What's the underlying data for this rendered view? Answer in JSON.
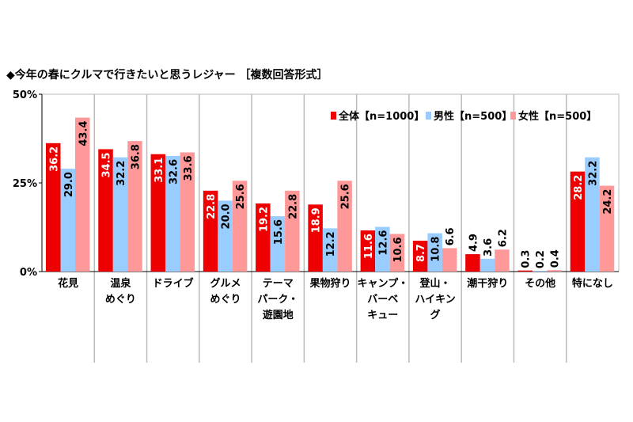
{
  "chart_data": {
    "type": "bar",
    "title": "◆今年の春にクルマで行きたいと思うレジャー ［複数回答形式］",
    "xlabel": "",
    "ylabel": "",
    "ylim": [
      0,
      50
    ],
    "yticks": [
      "0%",
      "25%",
      "50%"
    ],
    "ytick_values": [
      0,
      25,
      50
    ],
    "grid": "vertical separators between categories",
    "legend_position": "top-right",
    "categories": [
      [
        "花見"
      ],
      [
        "温泉",
        "めぐり"
      ],
      [
        "ドライブ"
      ],
      [
        "グルメ",
        "めぐり"
      ],
      [
        "テーマ",
        "パーク・",
        "遊園地"
      ],
      [
        "果物狩り"
      ],
      [
        "キャンプ・",
        "バーベ",
        "キュー"
      ],
      [
        "登山・",
        "ハイキン",
        "グ"
      ],
      [
        "潮干狩り"
      ],
      [
        "その他"
      ],
      [
        "特になし"
      ]
    ],
    "series": [
      {
        "name": "全体【n=1000】",
        "color": "#ee0000",
        "label_color": "#ffffff",
        "values": [
          36.2,
          34.5,
          33.1,
          22.8,
          19.2,
          18.9,
          11.6,
          8.7,
          4.9,
          0.3,
          28.2
        ]
      },
      {
        "name": "男性【n=500】",
        "color": "#99ccff",
        "label_color": "#000000",
        "values": [
          29.0,
          32.2,
          32.6,
          20.0,
          15.6,
          12.2,
          12.6,
          10.8,
          3.6,
          0.2,
          32.2
        ]
      },
      {
        "name": "女性【n=500】",
        "color": "#ff9999",
        "label_color": "#000000",
        "values": [
          43.4,
          36.8,
          33.6,
          25.6,
          22.8,
          25.6,
          10.6,
          6.6,
          6.2,
          0.4,
          24.2
        ]
      }
    ]
  }
}
